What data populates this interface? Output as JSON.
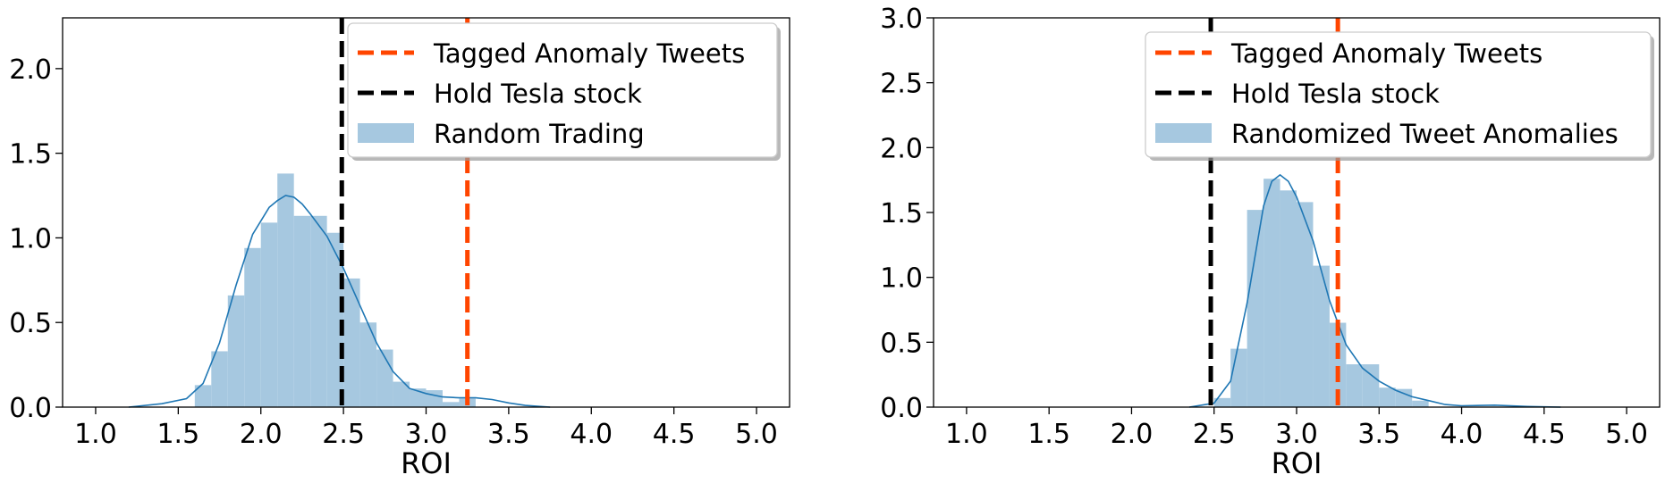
{
  "chart_data": [
    {
      "type": "histogram",
      "xlabel": "ROI",
      "ylabel": "",
      "xlim": [
        0.8,
        5.2
      ],
      "ylim": [
        0,
        2.3
      ],
      "xticks": [
        "1.0",
        "1.5",
        "2.0",
        "2.5",
        "3.0",
        "3.5",
        "4.0",
        "4.5",
        "5.0"
      ],
      "yticks": [
        "0.0",
        "0.5",
        "1.0",
        "1.5",
        "2.0"
      ],
      "grid": false,
      "legend_position": "upper-right",
      "legend": [
        "Tagged Anomaly Tweets",
        "Hold Tesla stock",
        "Random Trading"
      ],
      "colors": {
        "hist": "#a6c8e0",
        "kde": "#1f77b4",
        "tagged": "#ff4500",
        "hold": "#000000"
      },
      "bin_width": 0.1,
      "bins": [
        {
          "x0": 1.6,
          "y": 0.13
        },
        {
          "x0": 1.7,
          "y": 0.33
        },
        {
          "x0": 1.8,
          "y": 0.66
        },
        {
          "x0": 1.9,
          "y": 0.94
        },
        {
          "x0": 2.0,
          "y": 1.09
        },
        {
          "x0": 2.1,
          "y": 1.38
        },
        {
          "x0": 2.2,
          "y": 1.13
        },
        {
          "x0": 2.3,
          "y": 1.13
        },
        {
          "x0": 2.4,
          "y": 1.03
        },
        {
          "x0": 2.5,
          "y": 0.76
        },
        {
          "x0": 2.6,
          "y": 0.5
        },
        {
          "x0": 2.7,
          "y": 0.34
        },
        {
          "x0": 2.8,
          "y": 0.15
        },
        {
          "x0": 2.9,
          "y": 0.11
        },
        {
          "x0": 3.0,
          "y": 0.1
        },
        {
          "x0": 3.1,
          "y": 0.03
        },
        {
          "x0": 3.2,
          "y": 0.05
        }
      ],
      "kde": [
        [
          1.2,
          0.0
        ],
        [
          1.4,
          0.02
        ],
        [
          1.55,
          0.05
        ],
        [
          1.65,
          0.14
        ],
        [
          1.75,
          0.38
        ],
        [
          1.85,
          0.72
        ],
        [
          1.95,
          1.02
        ],
        [
          2.05,
          1.18
        ],
        [
          2.1,
          1.22
        ],
        [
          2.15,
          1.25
        ],
        [
          2.2,
          1.24
        ],
        [
          2.25,
          1.2
        ],
        [
          2.3,
          1.14
        ],
        [
          2.4,
          1.01
        ],
        [
          2.5,
          0.82
        ],
        [
          2.6,
          0.6
        ],
        [
          2.7,
          0.38
        ],
        [
          2.8,
          0.21
        ],
        [
          2.9,
          0.11
        ],
        [
          3.0,
          0.08
        ],
        [
          3.1,
          0.06
        ],
        [
          3.2,
          0.055
        ],
        [
          3.3,
          0.055
        ],
        [
          3.4,
          0.045
        ],
        [
          3.5,
          0.025
        ],
        [
          3.6,
          0.01
        ],
        [
          3.75,
          0.0
        ]
      ],
      "vlines": {
        "tagged_anomaly_tweets": 3.25,
        "hold_tesla_stock": 2.49
      }
    },
    {
      "type": "histogram",
      "xlabel": "ROI",
      "ylabel": "",
      "xlim": [
        0.8,
        5.2
      ],
      "ylim": [
        0,
        3.0
      ],
      "xticks": [
        "1.0",
        "1.5",
        "2.0",
        "2.5",
        "3.0",
        "3.5",
        "4.0",
        "4.5",
        "5.0"
      ],
      "yticks": [
        "0.0",
        "0.5",
        "1.0",
        "1.5",
        "2.0",
        "2.5",
        "3.0"
      ],
      "grid": false,
      "legend_position": "upper-right",
      "legend": [
        "Tagged Anomaly Tweets",
        "Hold Tesla stock",
        "Randomized Tweet Anomalies"
      ],
      "colors": {
        "hist": "#a6c8e0",
        "kde": "#1f77b4",
        "tagged": "#ff4500",
        "hold": "#000000"
      },
      "bin_width": 0.1,
      "bins": [
        {
          "x0": 2.5,
          "y": 0.07
        },
        {
          "x0": 2.6,
          "y": 0.45
        },
        {
          "x0": 2.7,
          "y": 1.52
        },
        {
          "x0": 2.8,
          "y": 1.76
        },
        {
          "x0": 2.9,
          "y": 1.67
        },
        {
          "x0": 3.0,
          "y": 1.58
        },
        {
          "x0": 3.1,
          "y": 1.09
        },
        {
          "x0": 3.2,
          "y": 0.65
        },
        {
          "x0": 3.3,
          "y": 0.33
        },
        {
          "x0": 3.4,
          "y": 0.33
        },
        {
          "x0": 3.5,
          "y": 0.15
        },
        {
          "x0": 3.6,
          "y": 0.14
        },
        {
          "x0": 3.7,
          "y": 0.05
        }
      ],
      "kde": [
        [
          2.35,
          0.0
        ],
        [
          2.5,
          0.03
        ],
        [
          2.6,
          0.2
        ],
        [
          2.7,
          0.8
        ],
        [
          2.8,
          1.55
        ],
        [
          2.85,
          1.74
        ],
        [
          2.9,
          1.79
        ],
        [
          2.95,
          1.74
        ],
        [
          3.0,
          1.62
        ],
        [
          3.1,
          1.28
        ],
        [
          3.2,
          0.82
        ],
        [
          3.3,
          0.48
        ],
        [
          3.4,
          0.3
        ],
        [
          3.5,
          0.2
        ],
        [
          3.6,
          0.13
        ],
        [
          3.7,
          0.08
        ],
        [
          3.8,
          0.05
        ],
        [
          3.9,
          0.02
        ],
        [
          4.0,
          0.01
        ],
        [
          4.2,
          0.015
        ],
        [
          4.4,
          0.005
        ],
        [
          4.6,
          0.0
        ]
      ],
      "vlines": {
        "tagged_anomaly_tweets": 3.25,
        "hold_tesla_stock": 2.48
      }
    }
  ]
}
